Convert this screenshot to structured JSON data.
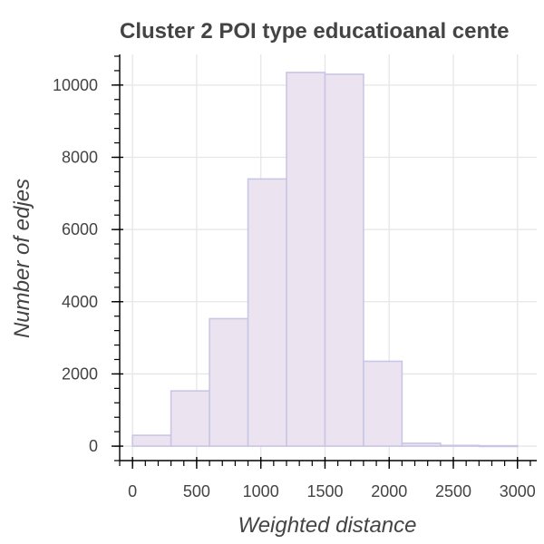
{
  "colors": {
    "bar_fill": "#ece3f1",
    "bar_stroke": "#c9c6e5",
    "grid": "#e6e6e6",
    "axis": "#000000",
    "text": "#444444"
  },
  "chart_data": {
    "type": "bar",
    "title": "Cluster 2 POI type educatioanal cente",
    "xlabel": "Weighted distance",
    "ylabel": "Number of edjes",
    "bin_edges": [
      0,
      300,
      600,
      900,
      1200,
      1500,
      1800,
      2100,
      2400,
      2700,
      3000
    ],
    "values": [
      300,
      1530,
      3530,
      7400,
      10350,
      10300,
      2350,
      80,
      20,
      10
    ],
    "xlim": [
      -100,
      3150
    ],
    "ylim": [
      -400,
      10850
    ],
    "x_ticks": [
      0,
      500,
      1000,
      1500,
      2000,
      2500,
      3000
    ],
    "y_ticks": [
      0,
      2000,
      4000,
      6000,
      8000,
      10000
    ],
    "x_tick_labels": [
      "0",
      "500",
      "1000",
      "1500",
      "2000",
      "2500",
      "3000"
    ],
    "y_tick_labels": [
      "0",
      "2000",
      "4000",
      "6000",
      "8000",
      "10000"
    ],
    "grid": true,
    "legend": "none"
  }
}
